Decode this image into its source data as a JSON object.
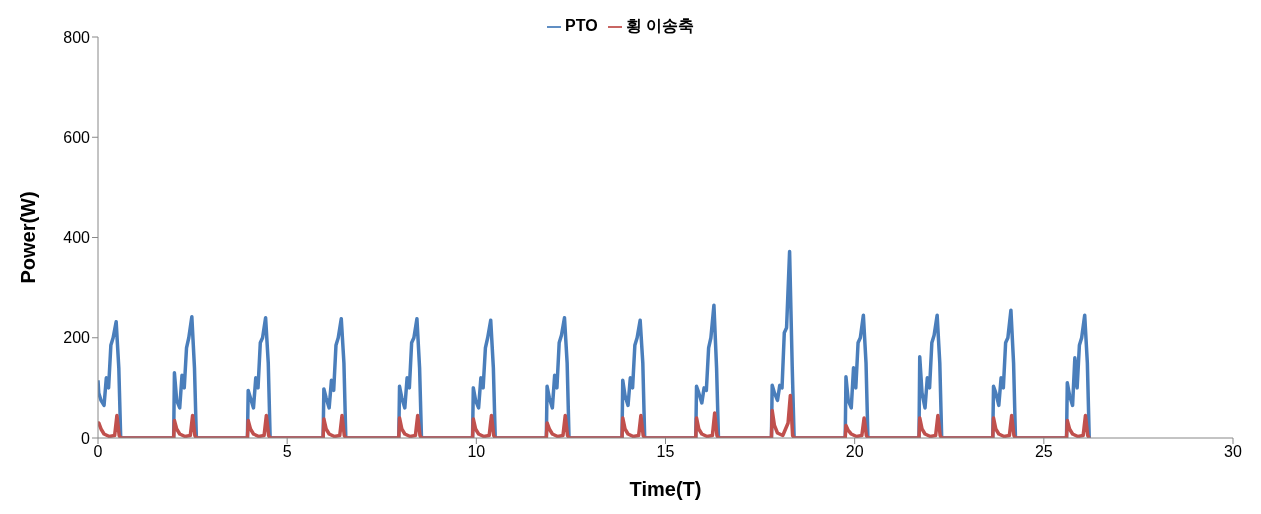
{
  "chart_data": {
    "type": "line",
    "xlabel": "Time(T)",
    "ylabel": "Power(W)",
    "xlim": [
      0,
      30
    ],
    "xticks": [
      0,
      5,
      10,
      15,
      20,
      25,
      30
    ],
    "ylim": [
      0,
      800
    ],
    "yticks": [
      0,
      200,
      400,
      600,
      800
    ],
    "grid": false,
    "legend": "top",
    "marker": "none",
    "line_style": "solid",
    "series": [
      {
        "name": "PTO",
        "color": "#4a7ebb",
        "x": [
          0,
          0.02,
          0.08,
          0.16,
          0.22,
          0.28,
          0.34,
          0.4,
          0.48,
          0.55,
          0.6,
          2,
          2.02,
          2.08,
          2.16,
          2.22,
          2.28,
          2.34,
          2.4,
          2.48,
          2.55,
          2.6,
          3.95,
          3.97,
          4.03,
          4.11,
          4.17,
          4.23,
          4.29,
          4.35,
          4.43,
          4.5,
          4.55,
          5.95,
          5.97,
          6.03,
          6.11,
          6.17,
          6.23,
          6.29,
          6.35,
          6.43,
          6.5,
          6.55,
          7.95,
          7.97,
          8.03,
          8.11,
          8.17,
          8.23,
          8.29,
          8.35,
          8.43,
          8.5,
          8.55,
          9.9,
          9.92,
          9.98,
          10.06,
          10.12,
          10.18,
          10.24,
          10.3,
          10.38,
          10.45,
          10.5,
          11.85,
          11.87,
          11.93,
          12.01,
          12.07,
          12.13,
          12.19,
          12.25,
          12.33,
          12.4,
          12.45,
          13.85,
          13.87,
          13.93,
          14.01,
          14.07,
          14.13,
          14.19,
          14.25,
          14.33,
          14.4,
          14.45,
          15.8,
          15.82,
          15.88,
          15.96,
          16.02,
          16.08,
          16.14,
          16.2,
          16.28,
          16.35,
          16.4,
          17.8,
          17.82,
          17.88,
          17.96,
          18.02,
          18.08,
          18.14,
          18.2,
          18.28,
          18.35,
          18.4,
          19.75,
          19.77,
          19.83,
          19.91,
          19.97,
          20.03,
          20.09,
          20.15,
          20.23,
          20.3,
          20.35,
          21.7,
          21.72,
          21.78,
          21.86,
          21.92,
          21.98,
          22.04,
          22.1,
          22.18,
          22.25,
          22.3,
          23.65,
          23.67,
          23.73,
          23.81,
          23.87,
          23.93,
          23.99,
          24.05,
          24.13,
          24.2,
          24.25,
          25.6,
          25.62,
          25.68,
          25.76,
          25.82,
          25.88,
          25.94,
          26,
          26.08,
          26.15,
          26.2
        ],
        "values": [
          115,
          90,
          75,
          65,
          120,
          100,
          185,
          200,
          232,
          140,
          0,
          0,
          130,
          75,
          60,
          125,
          100,
          180,
          200,
          242,
          140,
          0,
          0,
          95,
          80,
          60,
          120,
          100,
          190,
          200,
          240,
          150,
          0,
          0,
          98,
          80,
          60,
          115,
          95,
          185,
          200,
          238,
          150,
          0,
          0,
          103,
          80,
          60,
          120,
          100,
          190,
          200,
          238,
          140,
          0,
          0,
          100,
          75,
          60,
          120,
          100,
          180,
          200,
          235,
          140,
          0,
          0,
          103,
          80,
          60,
          125,
          100,
          190,
          205,
          240,
          150,
          0,
          0,
          115,
          85,
          65,
          120,
          100,
          185,
          200,
          235,
          150,
          0,
          0,
          103,
          90,
          70,
          100,
          95,
          180,
          200,
          265,
          140,
          0,
          0,
          105,
          90,
          75,
          105,
          100,
          210,
          220,
          372,
          140,
          0,
          0,
          122,
          75,
          60,
          140,
          100,
          190,
          200,
          245,
          150,
          0,
          0,
          162,
          90,
          60,
          120,
          100,
          190,
          205,
          245,
          150,
          0,
          0,
          103,
          90,
          65,
          120,
          100,
          190,
          200,
          255,
          150,
          0,
          0,
          110,
          85,
          65,
          160,
          100,
          185,
          200,
          245,
          150,
          0
        ]
      },
      {
        "name": "횡 이송축",
        "color": "#c0504d",
        "x": [
          0,
          0.02,
          0.08,
          0.16,
          0.3,
          0.44,
          0.5,
          0.56,
          0.6,
          2,
          2.02,
          2.08,
          2.16,
          2.3,
          2.44,
          2.5,
          2.56,
          2.6,
          3.95,
          3.97,
          4.03,
          4.11,
          4.25,
          4.39,
          4.45,
          4.51,
          4.55,
          5.95,
          5.97,
          6.03,
          6.11,
          6.25,
          6.39,
          6.45,
          6.51,
          6.55,
          7.95,
          7.97,
          8.03,
          8.11,
          8.25,
          8.39,
          8.45,
          8.51,
          8.55,
          9.9,
          9.92,
          9.98,
          10.06,
          10.2,
          10.34,
          10.4,
          10.46,
          10.5,
          11.85,
          11.87,
          11.93,
          12.01,
          12.15,
          12.29,
          12.35,
          12.41,
          12.45,
          13.85,
          13.87,
          13.93,
          14.01,
          14.15,
          14.29,
          14.35,
          14.41,
          14.45,
          15.8,
          15.82,
          15.88,
          15.96,
          16.1,
          16.24,
          16.3,
          16.36,
          16.4,
          17.8,
          17.82,
          17.88,
          17.96,
          18.1,
          18.24,
          18.3,
          18.36,
          18.4,
          19.75,
          19.77,
          19.83,
          19.91,
          20.05,
          20.19,
          20.25,
          20.31,
          20.35,
          21.7,
          21.72,
          21.78,
          21.86,
          22,
          22.14,
          22.2,
          22.26,
          22.3,
          23.65,
          23.67,
          23.73,
          23.81,
          23.95,
          24.09,
          24.15,
          24.21,
          24.25,
          25.6,
          25.62,
          25.68,
          25.76,
          25.9,
          26.04,
          26.1,
          26.16,
          26.2
        ],
        "values": [
          30,
          30,
          18,
          8,
          3,
          5,
          45,
          5,
          0,
          0,
          35,
          18,
          8,
          3,
          5,
          45,
          5,
          0,
          0,
          35,
          18,
          8,
          3,
          5,
          45,
          5,
          0,
          0,
          38,
          18,
          8,
          3,
          5,
          45,
          5,
          0,
          0,
          40,
          18,
          8,
          3,
          5,
          45,
          5,
          0,
          0,
          38,
          18,
          8,
          3,
          5,
          45,
          5,
          0,
          0,
          30,
          18,
          8,
          3,
          5,
          45,
          5,
          0,
          0,
          40,
          18,
          8,
          3,
          5,
          45,
          5,
          0,
          0,
          40,
          18,
          8,
          3,
          5,
          50,
          5,
          0,
          0,
          55,
          25,
          10,
          5,
          30,
          85,
          5,
          0,
          0,
          25,
          15,
          8,
          3,
          5,
          40,
          5,
          0,
          0,
          40,
          18,
          8,
          3,
          5,
          45,
          5,
          0,
          0,
          40,
          18,
          8,
          3,
          5,
          45,
          5,
          0,
          0,
          35,
          18,
          8,
          3,
          5,
          45,
          5,
          0
        ]
      }
    ]
  }
}
